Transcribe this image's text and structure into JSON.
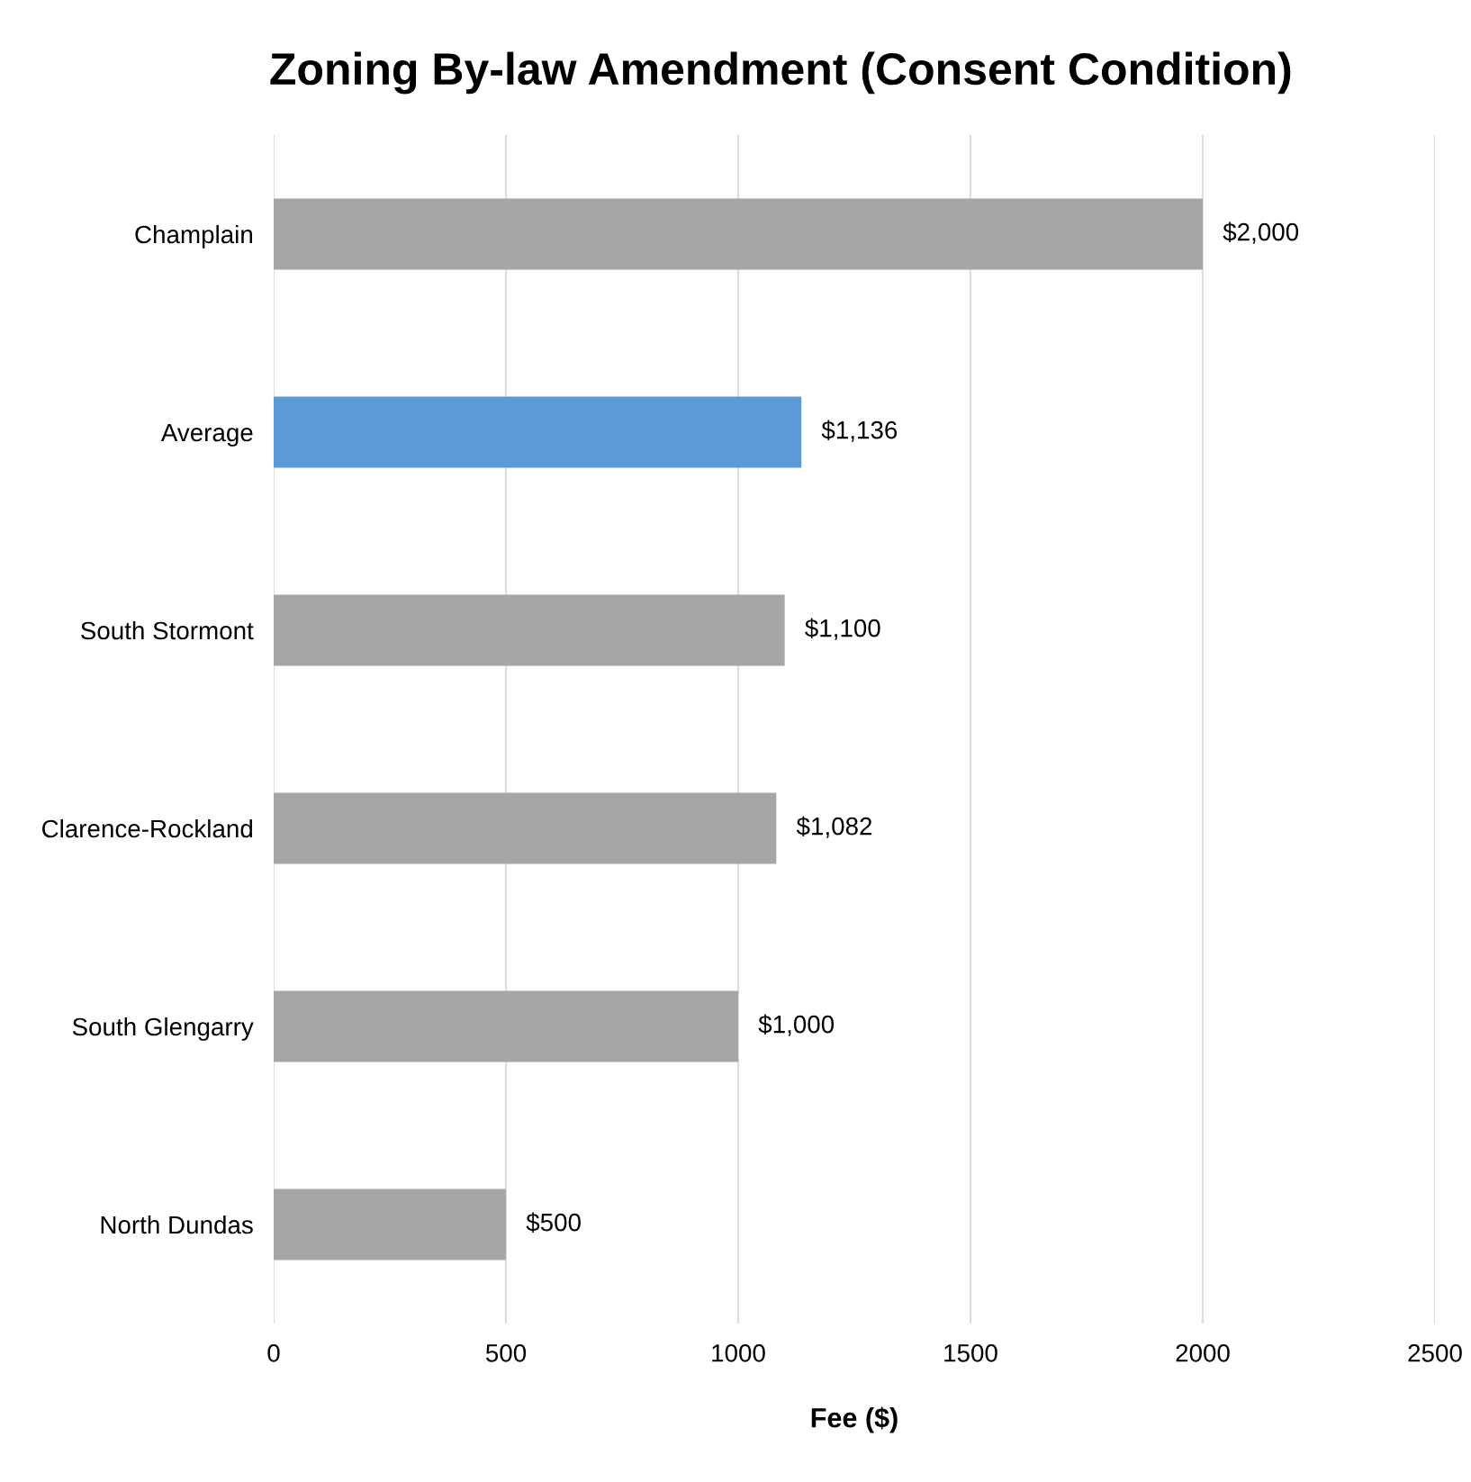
{
  "chart_data": {
    "type": "bar",
    "orientation": "horizontal",
    "title": "Zoning By-law Amendment (Consent Condition)",
    "xlabel": "Fee ($)",
    "categories": [
      "Champlain",
      "Average",
      "South Stormont",
      "Clarence-Rockland",
      "South Glengarry",
      "North Dundas"
    ],
    "values": [
      2000,
      1136,
      1100,
      1082,
      1000,
      500
    ],
    "colors": [
      "#a6a6a6",
      "#5b9bd5",
      "#a6a6a6",
      "#a6a6a6",
      "#a6a6a6",
      "#a6a6a6"
    ],
    "value_labels": [
      "$2,000",
      "$1,136",
      "$1,100",
      "$1,082",
      "$1,000",
      "$500"
    ],
    "xlim": [
      0,
      2500
    ],
    "xticks": [
      0,
      500,
      1000,
      1500,
      2000,
      2500
    ],
    "grid": "x"
  }
}
